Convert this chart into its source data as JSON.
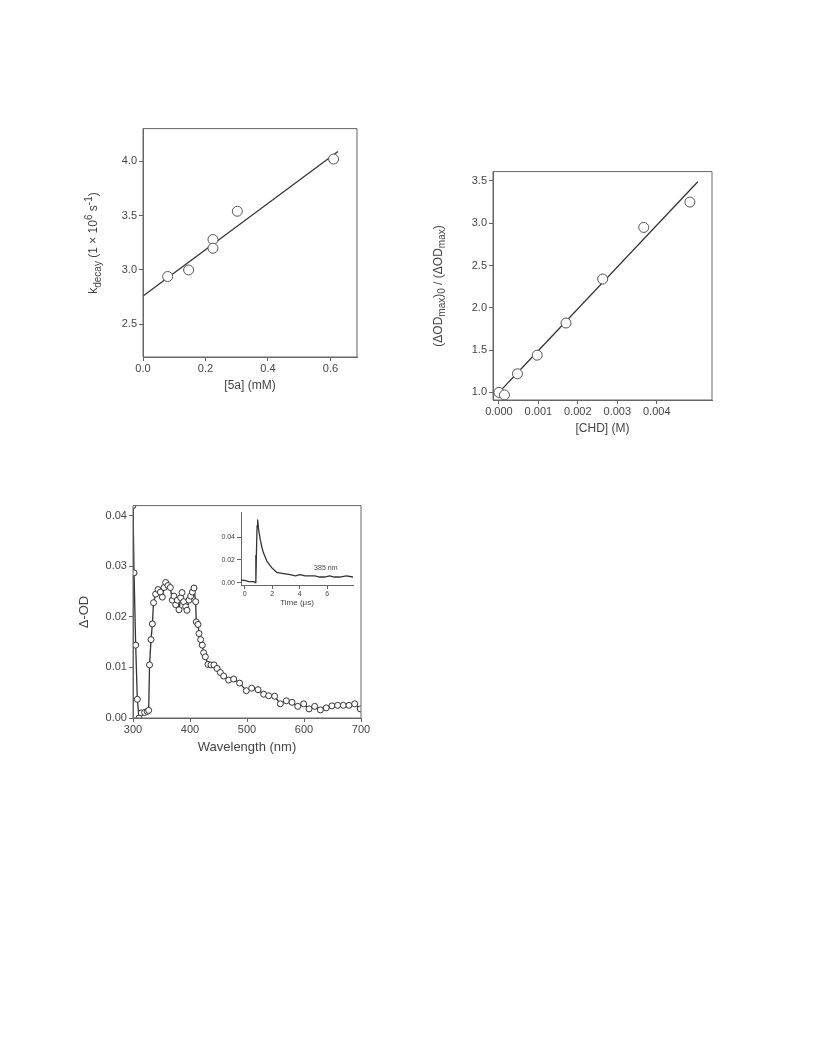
{
  "chart_data": [
    {
      "type": "scatter",
      "xlabel": "[5a] (mM)",
      "ylabel": "k$_{decay}$ (1 × 10$^{6}$ s$^{-1}$)",
      "xlim": [
        0,
        0.685
      ],
      "ylim": [
        2.2,
        4.3
      ],
      "xticks": [
        {
          "value": 0,
          "label": "0.0"
        },
        0.2,
        0.4,
        0.6
      ],
      "yticks": [
        2.5,
        {
          "value": 3,
          "label": "3.0"
        },
        3.5,
        {
          "value": 4,
          "label": "4.0"
        }
      ],
      "marker": "circle",
      "series": [
        {
          "type": "scatter",
          "color": "#555555",
          "x": [
            0.079,
            0.146,
            0.224,
            0.224,
            0.302,
            0.61
          ],
          "values": [
            2.94,
            3.0,
            3.28,
            3.2,
            3.54,
            4.02
          ]
        },
        {
          "type": "line",
          "color": "#333333",
          "marker": "none",
          "x": [
            0,
            0.624
          ],
          "values": [
            2.76,
            4.09
          ]
        }
      ]
    },
    {
      "type": "scatter",
      "xlabel": "[CHD]  (M)",
      "ylabel": "(ΔOD$_{max}$)$_{0}$ / (ΔOD$_{max}$)",
      "xlim": [
        -0.00015,
        0.0054
      ],
      "ylim": [
        0.91,
        3.61
      ],
      "xticks": [
        {
          "value": 0,
          "label": "0.000"
        },
        0.001,
        0.002,
        0.003,
        0.004
      ],
      "yticks": [
        {
          "value": 1,
          "label": "1.0"
        },
        1.5,
        {
          "value": 2,
          "label": "2.0"
        },
        2.5,
        {
          "value": 3,
          "label": "3.0"
        },
        3.5
      ],
      "marker": "circle",
      "series": [
        {
          "type": "scatter",
          "color": "#555555",
          "x": [
            0,
            0.00014,
            0.00047,
            0.00097,
            0.0017,
            0.00263,
            0.00367,
            0.00484
          ],
          "values": [
            1.0,
            0.97,
            1.22,
            1.44,
            1.82,
            2.34,
            2.95,
            3.25
          ]
        },
        {
          "type": "line",
          "color": "#333333",
          "marker": "none",
          "x": [
            0,
            0.00504
          ],
          "values": [
            1.0,
            3.49
          ]
        }
      ]
    },
    {
      "type": "line",
      "xlabel": "Wavelength (nm)",
      "ylabel": "Δ-OD",
      "xlim": [
        300,
        700
      ],
      "ylim": [
        0,
        0.042
      ],
      "xticks": [
        300,
        400,
        500,
        600,
        700
      ],
      "yticks": [
        {
          "value": 0,
          "label": "0.00"
        },
        0.01,
        0.02,
        0.03,
        0.04
      ],
      "marker": "circle",
      "series": [
        {
          "color": "#333333",
          "x": [
            300,
            301.8,
            304.7,
            307.6,
            310.5,
            314.6,
            320.5,
            325,
            327.5,
            329,
            331.6,
            334,
            336,
            339.8,
            343.9,
            348,
            351.5,
            354.4,
            357.3,
            361.4,
            365.5,
            369,
            371.9,
            374.9,
            377.8,
            380.7,
            383.6,
            386,
            388.9,
            392.4,
            394.7,
            398.2,
            401.2,
            404.1,
            407,
            409.9,
            411,
            414,
            415.8,
            418.7,
            421.6,
            424,
            426.9,
            431.6,
            436.8,
            442,
            447.4,
            453.2,
            459,
            467.8,
            476.6,
            487.1,
            498.8,
            508.2,
            519.3,
            529.2,
            538,
            548.5,
            558.5,
            569,
            579,
            589,
            599.4,
            608.8,
            618.7,
            628.7,
            639,
            649,
            659,
            669,
            678.9,
            688.9,
            698.8
          ],
          "values": [
            0.042,
            0.0287,
            0.0144,
            0.0037,
            0.0,
            0.001,
            0.0011,
            0.0013,
            0.0015,
            0.0105,
            0.0155,
            0.0186,
            0.0228,
            0.0245,
            0.0254,
            0.0249,
            0.0239,
            0.0258,
            0.0268,
            0.0262,
            0.0258,
            0.0233,
            0.0241,
            0.0224,
            0.0233,
            0.0214,
            0.0238,
            0.0248,
            0.023,
            0.022,
            0.0213,
            0.0233,
            0.0241,
            0.0249,
            0.0257,
            0.023,
            0.019,
            0.0185,
            0.0167,
            0.0155,
            0.0144,
            0.0129,
            0.0121,
            0.0106,
            0.0105,
            0.0105,
            0.0098,
            0.009,
            0.0083,
            0.0075,
            0.0077,
            0.0069,
            0.0054,
            0.0059,
            0.0056,
            0.0047,
            0.0044,
            0.0043,
            0.0028,
            0.0034,
            0.0031,
            0.0023,
            0.0028,
            0.0018,
            0.0023,
            0.0016,
            0.002,
            0.0024,
            0.0025,
            0.0025,
            0.0025,
            0.0028,
            0.0018
          ]
        }
      ]
    },
    {
      "type": "line",
      "xlabel": "Time (μs)",
      "xlim": [
        -0.27,
        7.88
      ],
      "ylim": [
        -0.002,
        0.062
      ],
      "xticks": [
        0,
        2,
        4,
        6
      ],
      "yticks": [
        {
          "value": 0,
          "label": "0.00"
        },
        0.02,
        0.04
      ],
      "marker": "none",
      "annotations": [
        {
          "text": "385 nm",
          "x": 5.9,
          "y": 0.0095
        }
      ],
      "series": [
        {
          "color": "#333333",
          "x": [
            -0.27,
            0,
            0.3,
            0.65,
            0.78,
            0.8,
            0.82,
            0.86,
            0.9,
            0.94,
            1.02,
            1.13,
            1.25,
            1.37,
            1.61,
            1.98,
            2.34,
            2.82,
            3.3,
            3.7,
            4.02,
            4.4,
            4.75,
            5.1,
            5.47,
            5.8,
            6.19,
            6.5,
            6.92,
            7.4,
            7.88
          ],
          "values": [
            0.002,
            0.002,
            0.001,
            0.001,
            0.0,
            0.024,
            0.0,
            0.03,
            0.05,
            0.055,
            0.046,
            0.038,
            0.031,
            0.026,
            0.019,
            0.013,
            0.009,
            0.008,
            0.007,
            0.006,
            0.007,
            0.006,
            0.006,
            0.006,
            0.005,
            0.005,
            0.006,
            0.005,
            0.005,
            0.006,
            0.005
          ]
        }
      ]
    }
  ]
}
